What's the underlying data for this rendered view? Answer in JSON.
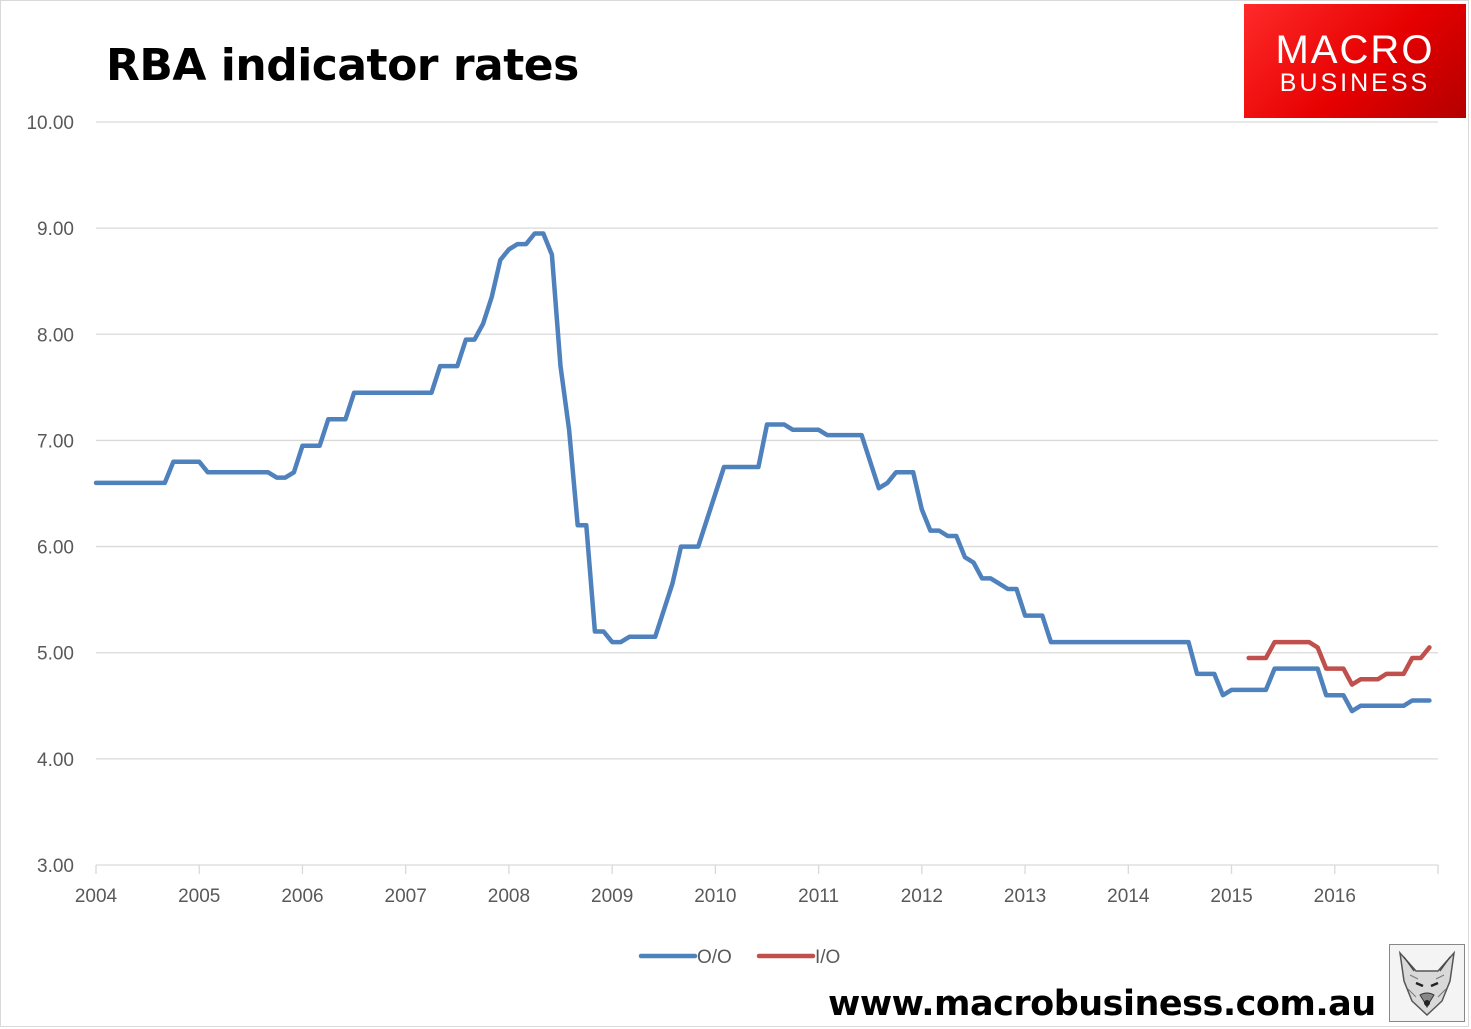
{
  "title": "RBA indicator rates",
  "logo": {
    "line1": "MACRO",
    "line2": "BUSINESS"
  },
  "website": "www.macrobusiness.com.au",
  "colors": {
    "oo": "#4f81bd",
    "io": "#c0504d",
    "grid": "#d9d9d9",
    "logo": "#e8191a"
  },
  "icons": {
    "fox": "fox-head-icon"
  },
  "chart_data": {
    "type": "line",
    "title": "RBA indicator rates",
    "xlabel": "",
    "ylabel": "",
    "x_ticks": [
      "2004",
      "2005",
      "2006",
      "2007",
      "2008",
      "2009",
      "2010",
      "2011",
      "2012",
      "2013",
      "2014",
      "2015",
      "2016"
    ],
    "y_ticks": [
      "3.00",
      "4.00",
      "5.00",
      "6.00",
      "7.00",
      "8.00",
      "9.00",
      "10.00"
    ],
    "ylim": [
      3,
      10
    ],
    "xlim": [
      "2004-01",
      "2016-12"
    ],
    "grid": true,
    "legend_position": "bottom",
    "series": [
      {
        "name": "O/O",
        "color": "#4f81bd",
        "points": [
          [
            "2004-01",
            6.6
          ],
          [
            "2004-02",
            6.6
          ],
          [
            "2004-03",
            6.6
          ],
          [
            "2004-04",
            6.6
          ],
          [
            "2004-05",
            6.6
          ],
          [
            "2004-06",
            6.6
          ],
          [
            "2004-07",
            6.6
          ],
          [
            "2004-08",
            6.6
          ],
          [
            "2004-09",
            6.6
          ],
          [
            "2004-10",
            6.8
          ],
          [
            "2004-11",
            6.8
          ],
          [
            "2004-12",
            6.8
          ],
          [
            "2005-01",
            6.8
          ],
          [
            "2005-02",
            6.7
          ],
          [
            "2005-03",
            6.7
          ],
          [
            "2005-04",
            6.7
          ],
          [
            "2005-05",
            6.7
          ],
          [
            "2005-06",
            6.7
          ],
          [
            "2005-07",
            6.7
          ],
          [
            "2005-08",
            6.7
          ],
          [
            "2005-09",
            6.7
          ],
          [
            "2005-10",
            6.65
          ],
          [
            "2005-11",
            6.65
          ],
          [
            "2005-12",
            6.7
          ],
          [
            "2006-01",
            6.95
          ],
          [
            "2006-02",
            6.95
          ],
          [
            "2006-03",
            6.95
          ],
          [
            "2006-04",
            7.2
          ],
          [
            "2006-05",
            7.2
          ],
          [
            "2006-06",
            7.2
          ],
          [
            "2006-07",
            7.45
          ],
          [
            "2006-08",
            7.45
          ],
          [
            "2006-09",
            7.45
          ],
          [
            "2006-10",
            7.45
          ],
          [
            "2006-11",
            7.45
          ],
          [
            "2006-12",
            7.45
          ],
          [
            "2007-01",
            7.45
          ],
          [
            "2007-02",
            7.45
          ],
          [
            "2007-03",
            7.45
          ],
          [
            "2007-04",
            7.45
          ],
          [
            "2007-05",
            7.7
          ],
          [
            "2007-06",
            7.7
          ],
          [
            "2007-07",
            7.7
          ],
          [
            "2007-08",
            7.95
          ],
          [
            "2007-09",
            7.95
          ],
          [
            "2007-10",
            8.1
          ],
          [
            "2007-11",
            8.35
          ],
          [
            "2007-12",
            8.7
          ],
          [
            "2008-01",
            8.8
          ],
          [
            "2008-02",
            8.85
          ],
          [
            "2008-03",
            8.85
          ],
          [
            "2008-04",
            8.95
          ],
          [
            "2008-05",
            8.95
          ],
          [
            "2008-06",
            8.75
          ],
          [
            "2008-07",
            7.7
          ],
          [
            "2008-08",
            7.1
          ],
          [
            "2008-09",
            6.2
          ],
          [
            "2008-10",
            6.2
          ],
          [
            "2008-11",
            5.2
          ],
          [
            "2008-12",
            5.2
          ],
          [
            "2009-01",
            5.1
          ],
          [
            "2009-02",
            5.1
          ],
          [
            "2009-03",
            5.15
          ],
          [
            "2009-04",
            5.15
          ],
          [
            "2009-05",
            5.15
          ],
          [
            "2009-06",
            5.15
          ],
          [
            "2009-07",
            5.4
          ],
          [
            "2009-08",
            5.65
          ],
          [
            "2009-09",
            6.0
          ],
          [
            "2009-10",
            6.0
          ],
          [
            "2009-11",
            6.0
          ],
          [
            "2009-12",
            6.25
          ],
          [
            "2010-01",
            6.5
          ],
          [
            "2010-02",
            6.75
          ],
          [
            "2010-03",
            6.75
          ],
          [
            "2010-04",
            6.75
          ],
          [
            "2010-05",
            6.75
          ],
          [
            "2010-06",
            6.75
          ],
          [
            "2010-07",
            7.15
          ],
          [
            "2010-08",
            7.15
          ],
          [
            "2010-09",
            7.15
          ],
          [
            "2010-10",
            7.1
          ],
          [
            "2010-11",
            7.1
          ],
          [
            "2010-12",
            7.1
          ],
          [
            "2011-01",
            7.1
          ],
          [
            "2011-02",
            7.05
          ],
          [
            "2011-03",
            7.05
          ],
          [
            "2011-04",
            7.05
          ],
          [
            "2011-05",
            7.05
          ],
          [
            "2011-06",
            7.05
          ],
          [
            "2011-07",
            6.8
          ],
          [
            "2011-08",
            6.55
          ],
          [
            "2011-09",
            6.6
          ],
          [
            "2011-10",
            6.7
          ],
          [
            "2011-11",
            6.7
          ],
          [
            "2011-12",
            6.7
          ],
          [
            "2012-01",
            6.35
          ],
          [
            "2012-02",
            6.15
          ],
          [
            "2012-03",
            6.15
          ],
          [
            "2012-04",
            6.1
          ],
          [
            "2012-05",
            6.1
          ],
          [
            "2012-06",
            5.9
          ],
          [
            "2012-07",
            5.85
          ],
          [
            "2012-08",
            5.7
          ],
          [
            "2012-09",
            5.7
          ],
          [
            "2012-10",
            5.65
          ],
          [
            "2012-11",
            5.6
          ],
          [
            "2012-12",
            5.6
          ],
          [
            "2013-01",
            5.35
          ],
          [
            "2013-02",
            5.35
          ],
          [
            "2013-03",
            5.35
          ],
          [
            "2013-04",
            5.1
          ],
          [
            "2013-05",
            5.1
          ],
          [
            "2013-06",
            5.1
          ],
          [
            "2013-07",
            5.1
          ],
          [
            "2013-08",
            5.1
          ],
          [
            "2013-09",
            5.1
          ],
          [
            "2013-10",
            5.1
          ],
          [
            "2013-11",
            5.1
          ],
          [
            "2013-12",
            5.1
          ],
          [
            "2014-01",
            5.1
          ],
          [
            "2014-02",
            5.1
          ],
          [
            "2014-03",
            5.1
          ],
          [
            "2014-04",
            5.1
          ],
          [
            "2014-05",
            5.1
          ],
          [
            "2014-06",
            5.1
          ],
          [
            "2014-07",
            5.1
          ],
          [
            "2014-08",
            5.1
          ],
          [
            "2014-09",
            4.8
          ],
          [
            "2014-10",
            4.8
          ],
          [
            "2014-11",
            4.8
          ],
          [
            "2014-12",
            4.6
          ],
          [
            "2015-01",
            4.65
          ],
          [
            "2015-02",
            4.65
          ],
          [
            "2015-03",
            4.65
          ],
          [
            "2015-04",
            4.65
          ],
          [
            "2015-05",
            4.65
          ],
          [
            "2015-06",
            4.85
          ],
          [
            "2015-07",
            4.85
          ],
          [
            "2015-08",
            4.85
          ],
          [
            "2015-09",
            4.85
          ],
          [
            "2015-10",
            4.85
          ],
          [
            "2015-11",
            4.85
          ],
          [
            "2015-12",
            4.6
          ],
          [
            "2016-01",
            4.6
          ],
          [
            "2016-02",
            4.6
          ],
          [
            "2016-03",
            4.45
          ],
          [
            "2016-04",
            4.5
          ],
          [
            "2016-05",
            4.5
          ],
          [
            "2016-06",
            4.5
          ],
          [
            "2016-07",
            4.5
          ],
          [
            "2016-08",
            4.5
          ],
          [
            "2016-09",
            4.5
          ],
          [
            "2016-10",
            4.55
          ],
          [
            "2016-11",
            4.55
          ],
          [
            "2016-12",
            4.55
          ]
        ]
      },
      {
        "name": "I/O",
        "color": "#c0504d",
        "points": [
          [
            "2015-03",
            4.95
          ],
          [
            "2015-04",
            4.95
          ],
          [
            "2015-05",
            4.95
          ],
          [
            "2015-06",
            5.1
          ],
          [
            "2015-07",
            5.1
          ],
          [
            "2015-08",
            5.1
          ],
          [
            "2015-09",
            5.1
          ],
          [
            "2015-10",
            5.1
          ],
          [
            "2015-11",
            5.05
          ],
          [
            "2015-12",
            4.85
          ],
          [
            "2016-01",
            4.85
          ],
          [
            "2016-02",
            4.85
          ],
          [
            "2016-03",
            4.7
          ],
          [
            "2016-04",
            4.75
          ],
          [
            "2016-05",
            4.75
          ],
          [
            "2016-06",
            4.75
          ],
          [
            "2016-07",
            4.8
          ],
          [
            "2016-08",
            4.8
          ],
          [
            "2016-09",
            4.8
          ],
          [
            "2016-10",
            4.95
          ],
          [
            "2016-11",
            4.95
          ],
          [
            "2016-12",
            5.05
          ]
        ]
      }
    ]
  }
}
